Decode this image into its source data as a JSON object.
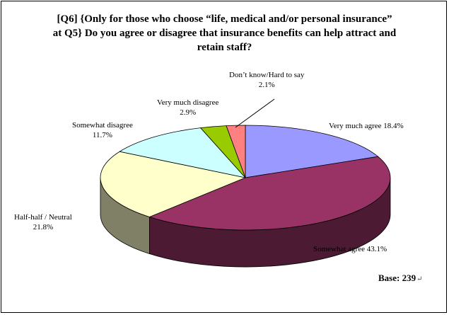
{
  "title_lines": [
    "[Q6] {Only for those who choose “life, medical and/or personal insurance”",
    "at Q5} Do you agree or disagree that insurance benefits can help attract and",
    "retain staff?"
  ],
  "base": {
    "label": "Base:",
    "value": "239",
    "mark": "↵"
  },
  "chart_data": {
    "type": "pie",
    "style": "3d",
    "unit": "%",
    "slices": [
      {
        "name": "Very much agree",
        "value": 18.4,
        "label": "18.4%",
        "color": "#9999ff",
        "side_color": "#5c5c99"
      },
      {
        "name": "Somewhat agree",
        "value": 43.1,
        "label": "43.1%",
        "color": "#993366",
        "side_color": "#4d1a33"
      },
      {
        "name": "Half-half / Neutral",
        "value": 21.8,
        "label": "21.8%",
        "color": "#ffffcc",
        "side_color": "#808066"
      },
      {
        "name": "Somewhat disagree",
        "value": 11.7,
        "label": "11.7%",
        "color": "#ccffff",
        "side_color": "#668080"
      },
      {
        "name": "Very much disagree",
        "value": 2.9,
        "label": "2.9%",
        "color": "#99cc00",
        "side_color": "#4d6600"
      },
      {
        "name": "Don’t know/Hard to say",
        "value": 2.1,
        "label": "2.1%",
        "color": "#ff8080",
        "side_color": "#804040"
      }
    ]
  }
}
